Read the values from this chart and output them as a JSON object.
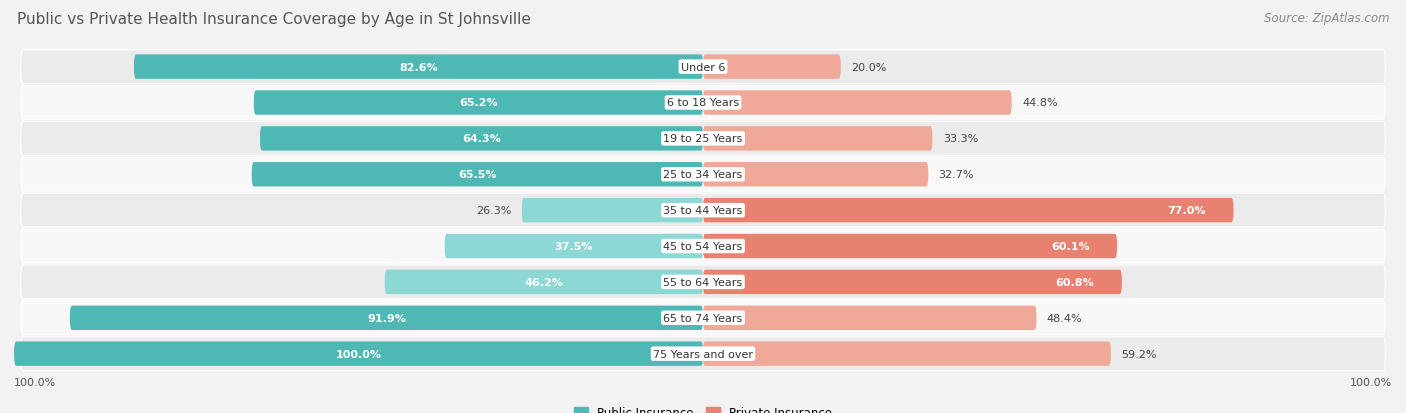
{
  "title": "Public vs Private Health Insurance Coverage by Age in St Johnsville",
  "source": "Source: ZipAtlas.com",
  "categories": [
    "Under 6",
    "6 to 18 Years",
    "19 to 25 Years",
    "25 to 34 Years",
    "35 to 44 Years",
    "45 to 54 Years",
    "55 to 64 Years",
    "65 to 74 Years",
    "75 Years and over"
  ],
  "public_values": [
    82.6,
    65.2,
    64.3,
    65.5,
    26.3,
    37.5,
    46.2,
    91.9,
    100.0
  ],
  "private_values": [
    20.0,
    44.8,
    33.3,
    32.7,
    77.0,
    60.1,
    60.8,
    48.4,
    59.2
  ],
  "public_color": "#4db8b4",
  "private_color": "#e8816f",
  "public_color_light": "#8dd8d4",
  "private_color_light": "#f0a898",
  "public_label": "Public Insurance",
  "private_label": "Private Insurance",
  "background_color": "#f2f2f2",
  "row_bg_even": "#ebebeb",
  "row_bg_odd": "#f8f8f8",
  "max_value": 100.0,
  "title_fontsize": 11,
  "source_fontsize": 8.5,
  "label_fontsize": 8.0,
  "cat_fontsize": 8.0
}
